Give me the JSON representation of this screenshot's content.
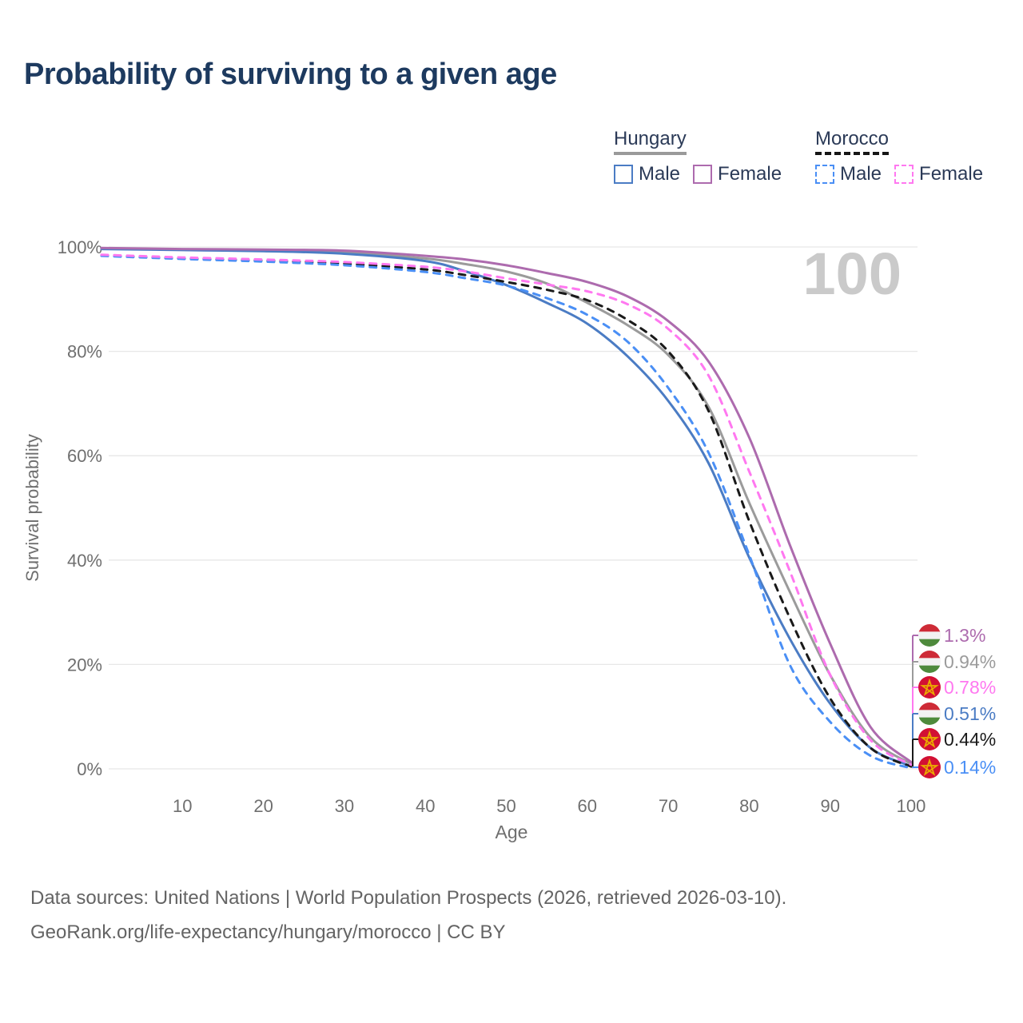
{
  "title": "Probability of surviving to a given age",
  "watermark_age": "100",
  "legend": {
    "groups": [
      {
        "name": "Hungary",
        "underline": "solid",
        "underline_color": "#9a9a9a",
        "items": [
          {
            "label": "Male",
            "color": "#4b7cc4",
            "dashed": false
          },
          {
            "label": "Female",
            "color": "#ad6bae",
            "dashed": false
          }
        ]
      },
      {
        "name": "Morocco",
        "underline": "dashed",
        "underline_color": "#161616",
        "items": [
          {
            "label": "Male",
            "color": "#4a8ff5",
            "dashed": true
          },
          {
            "label": "Female",
            "color": "#ff78f0",
            "dashed": true
          }
        ]
      }
    ]
  },
  "flags": {
    "hungary": {
      "stripes": [
        "#ce2b37",
        "#f2f2f2",
        "#4e8a3c"
      ]
    },
    "morocco": {
      "background": "#d21034",
      "star": "#eaaa00"
    }
  },
  "chart_data": {
    "type": "line",
    "title": "Probability of surviving to a given age",
    "xlabel": "Age",
    "ylabel": "Survival probability",
    "xlim": [
      0,
      100
    ],
    "ylim": [
      0,
      100
    ],
    "grid": "horizontal",
    "legend_position": "top-right",
    "x_ticks": [
      "10",
      "20",
      "30",
      "40",
      "50",
      "60",
      "70",
      "80",
      "90",
      "100"
    ],
    "y_ticks": [
      {
        "value": 0,
        "label": "0%"
      },
      {
        "value": 20,
        "label": "20%"
      },
      {
        "value": 40,
        "label": "40%"
      },
      {
        "value": 60,
        "label": "60%"
      },
      {
        "value": 80,
        "label": "80%"
      },
      {
        "value": 100,
        "label": "100%"
      }
    ],
    "x": [
      0,
      10,
      20,
      30,
      40,
      45,
      50,
      55,
      60,
      65,
      70,
      75,
      80,
      85,
      90,
      95,
      100
    ],
    "series": [
      {
        "key": "hungary-total",
        "name": "Hungary",
        "country": "Hungary",
        "sex": "Both",
        "color": "#9b9b9b",
        "dashed": false,
        "flag": "hungary",
        "end_label": "0.94%",
        "label_slot": 1,
        "values": [
          99.7,
          99.5,
          99.3,
          99.0,
          97.8,
          96.7,
          95.3,
          93.0,
          89.3,
          85.0,
          79.3,
          69.3,
          51.0,
          34.0,
          18.0,
          6.0,
          0.94
        ]
      },
      {
        "key": "hungary-male",
        "name": "Hungary Male",
        "country": "Hungary",
        "sex": "Male",
        "color": "#4b7cc4",
        "dashed": false,
        "flag": "hungary",
        "end_label": "0.51%",
        "label_slot": 3,
        "values": [
          99.6,
          99.4,
          99.2,
          98.7,
          97.3,
          95.3,
          92.7,
          89.3,
          85.3,
          79.0,
          70.5,
          58.5,
          40.5,
          25.0,
          12.5,
          4.0,
          0.51
        ]
      },
      {
        "key": "hungary-female",
        "name": "Hungary Female",
        "country": "Hungary",
        "sex": "Female",
        "color": "#ad6bae",
        "dashed": false,
        "flag": "hungary",
        "end_label": "1.3%",
        "label_slot": 0,
        "values": [
          99.8,
          99.6,
          99.5,
          99.3,
          98.3,
          97.6,
          96.5,
          95.0,
          93.3,
          90.5,
          85.8,
          78.0,
          63.5,
          43.0,
          24.0,
          8.0,
          1.3
        ]
      },
      {
        "key": "morocco-total",
        "name": "Morocco",
        "country": "Morocco",
        "sex": "Both",
        "color": "#1a1a1a",
        "dashed": true,
        "flag": "morocco",
        "end_label": "0.44%",
        "label_slot": 4,
        "values": [
          98.4,
          97.8,
          97.4,
          96.8,
          95.7,
          94.6,
          93.3,
          91.8,
          89.8,
          86.0,
          80.0,
          68.5,
          47.5,
          29.0,
          13.5,
          4.0,
          0.44
        ]
      },
      {
        "key": "morocco-male",
        "name": "Morocco Male",
        "country": "Morocco",
        "sex": "Male",
        "color": "#4a8ff5",
        "dashed": true,
        "flag": "morocco",
        "end_label": "0.14%",
        "label_slot": 5,
        "values": [
          98.3,
          97.7,
          97.2,
          96.5,
          95.2,
          94.0,
          92.6,
          90.2,
          87.0,
          81.8,
          73.0,
          60.5,
          41.0,
          20.0,
          9.0,
          2.5,
          0.14
        ]
      },
      {
        "key": "morocco-female",
        "name": "Morocco Female",
        "country": "Morocco",
        "sex": "Female",
        "color": "#ff78f0",
        "dashed": true,
        "flag": "morocco",
        "end_label": "0.78%",
        "label_slot": 2,
        "values": [
          98.5,
          98.0,
          97.6,
          97.1,
          96.2,
          95.3,
          94.0,
          92.8,
          91.5,
          89.0,
          84.3,
          75.3,
          57.0,
          38.0,
          18.0,
          5.5,
          0.78
        ]
      }
    ]
  },
  "footer": {
    "line1": "Data sources: United Nations | World Population Prospects (2026, retrieved 2026-03-10).",
    "line2": "GeoRank.org/life-expectancy/hungary/morocco | CC BY"
  }
}
